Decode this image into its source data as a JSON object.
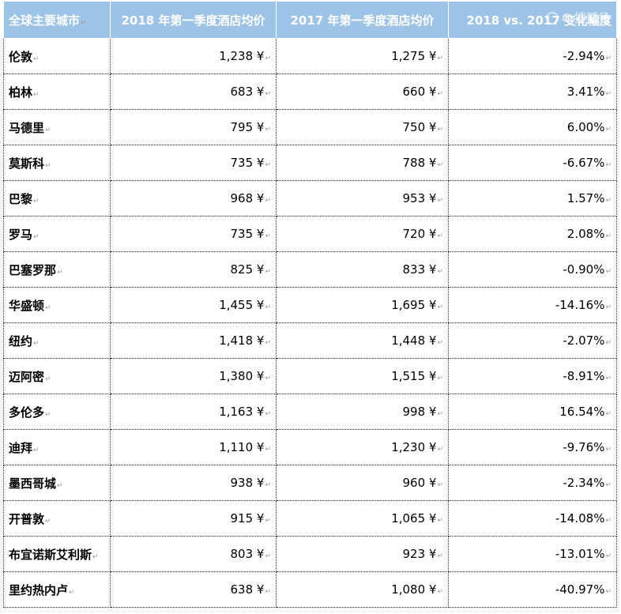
{
  "table": {
    "headers": [
      "全球主要城市",
      "2018 年第一季度酒店均价",
      "2017 年第一季度酒店均价",
      "2018 vs. 2017 变化幅度"
    ],
    "rows": [
      {
        "city": "伦敦",
        "q1_2018": "1,238 ¥",
        "q1_2017": "1,275 ¥",
        "change": "-2.94%"
      },
      {
        "city": "柏林",
        "q1_2018": "683 ¥",
        "q1_2017": "660 ¥",
        "change": "3.41%"
      },
      {
        "city": "马德里",
        "q1_2018": "795 ¥",
        "q1_2017": "750 ¥",
        "change": "6.00%"
      },
      {
        "city": "莫斯科",
        "q1_2018": "735 ¥",
        "q1_2017": "788 ¥",
        "change": "-6.67%"
      },
      {
        "city": "巴黎",
        "q1_2018": "968 ¥",
        "q1_2017": "953 ¥",
        "change": "1.57%"
      },
      {
        "city": "罗马",
        "q1_2018": "735 ¥",
        "q1_2017": "720 ¥",
        "change": "2.08%"
      },
      {
        "city": "巴塞罗那",
        "q1_2018": "825 ¥",
        "q1_2017": "833 ¥",
        "change": "-0.90%"
      },
      {
        "city": "华盛顿",
        "q1_2018": "1,455 ¥",
        "q1_2017": "1,695 ¥",
        "change": "-14.16%"
      },
      {
        "city": "纽约",
        "q1_2018": "1,418 ¥",
        "q1_2017": "1,448 ¥",
        "change": "-2.07%"
      },
      {
        "city": "迈阿密",
        "q1_2018": "1,380 ¥",
        "q1_2017": "1,515 ¥",
        "change": "-8.91%"
      },
      {
        "city": "多伦多",
        "q1_2018": "1,163 ¥",
        "q1_2017": "998 ¥",
        "change": "16.54%"
      },
      {
        "city": "迪拜",
        "q1_2018": "1,110 ¥",
        "q1_2017": "1,230 ¥",
        "change": "-9.76%"
      },
      {
        "city": "墨西哥城",
        "q1_2018": "938 ¥",
        "q1_2017": "960 ¥",
        "change": "-2.34%"
      },
      {
        "city": "开普敦",
        "q1_2018": "915 ¥",
        "q1_2017": "1,065 ¥",
        "change": "-14.08%"
      },
      {
        "city": "布宜诺斯艾利斯",
        "q1_2018": "803 ¥",
        "q1_2017": "923 ¥",
        "change": "-13.01%"
      },
      {
        "city": "里约热内卢",
        "q1_2018": "638 ¥",
        "q1_2017": "1,080 ¥",
        "change": "-40.97%"
      }
    ]
  },
  "paragraph_mark": "↵",
  "watermark": "C 搜狐号",
  "colors": {
    "header_bg": "#9dc3e6",
    "header_text": "#ffffff",
    "border": "#222222"
  }
}
